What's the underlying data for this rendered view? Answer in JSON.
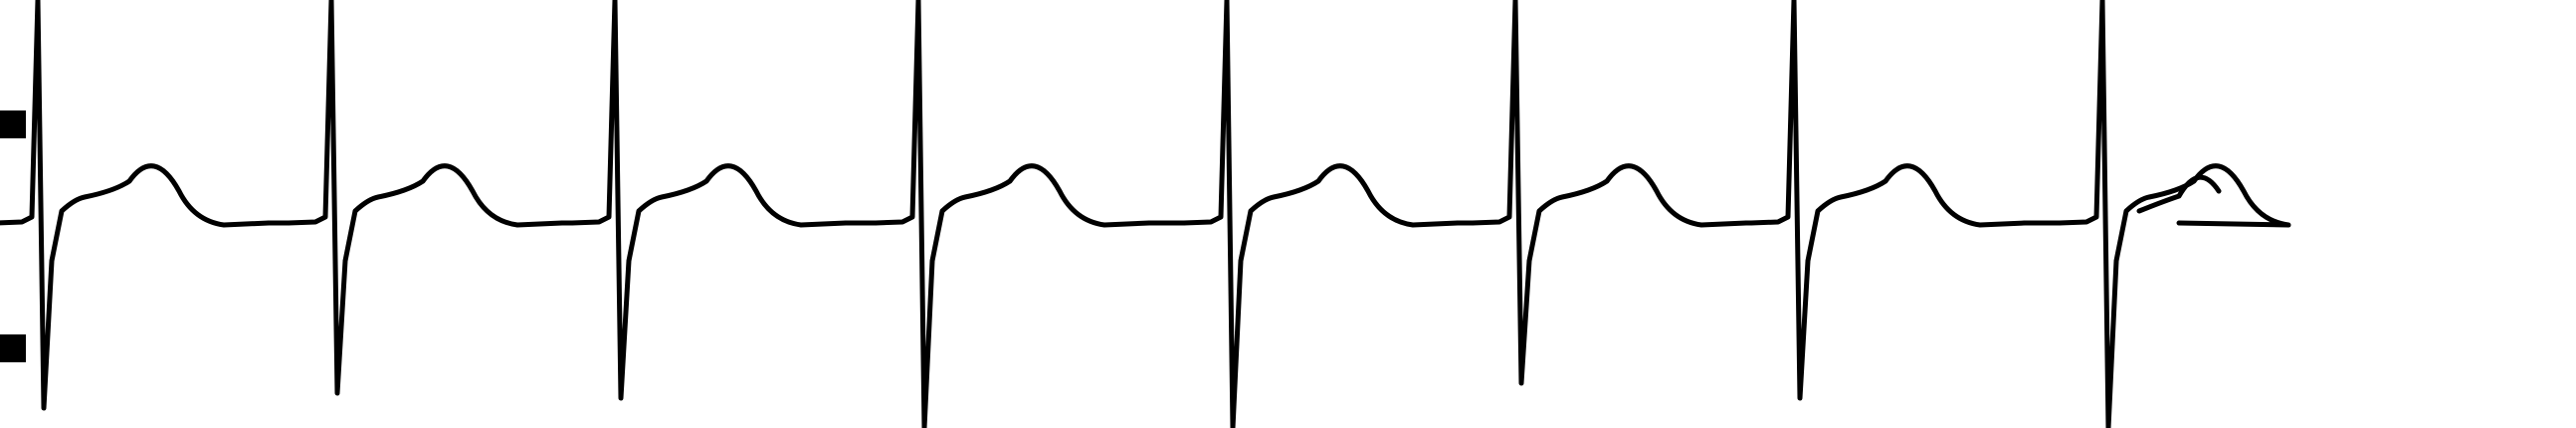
{
  "image": {
    "description_kind": "scanned ECG rhythm strip fragment, black trace on white",
    "colors": {
      "background": "#ffffff",
      "trace": "#000000"
    },
    "trace": {
      "beat_count": 8,
      "beats": [
        {
          "index": 1
        },
        {
          "index": 2
        },
        {
          "index": 3
        },
        {
          "index": 4
        },
        {
          "index": 5
        },
        {
          "index": 6
        },
        {
          "index": 7
        },
        {
          "index": 8
        }
      ]
    },
    "calibration_markers": {
      "count": 2
    }
  }
}
